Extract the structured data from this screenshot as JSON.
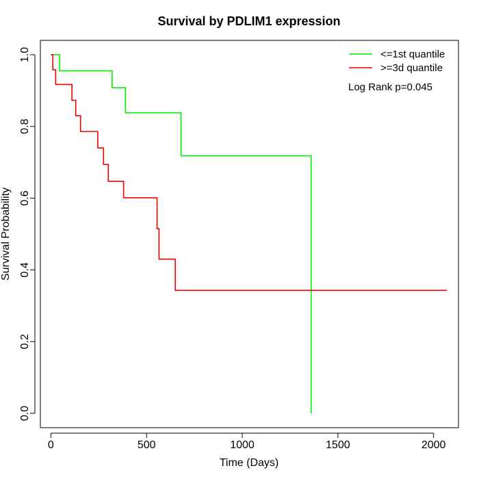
{
  "chart_data": {
    "type": "line",
    "title": "Survival by PDLIM1 expression",
    "xlabel": "Time (Days)",
    "ylabel": "Survival Probability",
    "xlim": [
      -55,
      2130
    ],
    "ylim": [
      -0.04,
      1.04
    ],
    "x_ticks": [
      0,
      500,
      1000,
      1500,
      2000
    ],
    "x_tick_labels": [
      "0",
      "500",
      "1000",
      "1500",
      "2000"
    ],
    "y_ticks": [
      0.0,
      0.2,
      0.4,
      0.6,
      0.8,
      1.0
    ],
    "y_tick_labels": [
      "0.0",
      "0.2",
      "0.4",
      "0.6",
      "0.8",
      "1.0"
    ],
    "grid": false,
    "legend_position": "top-right",
    "annotation": "Log Rank p=0.045",
    "series": [
      {
        "name": "<=1st quantile",
        "color": "#00ee00",
        "x": [
          0,
          45,
          320,
          390,
          680,
          1360,
          1360
        ],
        "y": [
          1.0,
          0.955,
          0.908,
          0.838,
          0.718,
          0.718,
          0.0
        ]
      },
      {
        "name": ">=3d quantile",
        "color": "#ee0000",
        "x": [
          0,
          10,
          25,
          110,
          130,
          155,
          245,
          275,
          300,
          380,
          555,
          565,
          650,
          2070
        ],
        "y": [
          1.0,
          0.958,
          0.917,
          0.873,
          0.83,
          0.786,
          0.74,
          0.694,
          0.647,
          0.601,
          0.515,
          0.43,
          0.343,
          0.343
        ]
      }
    ]
  }
}
